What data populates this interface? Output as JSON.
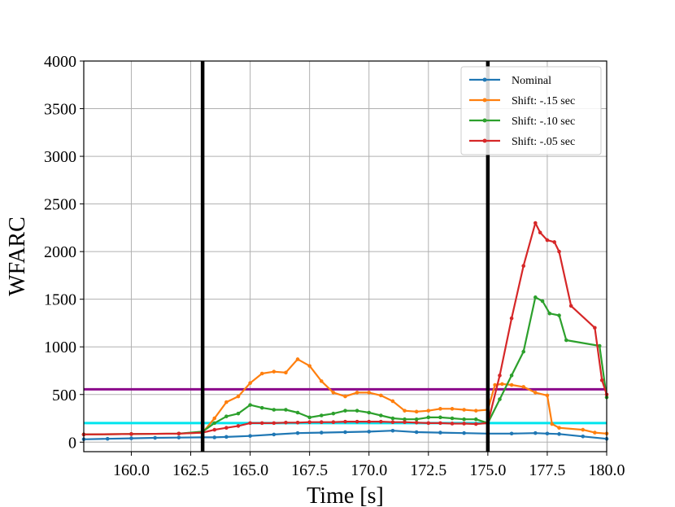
{
  "chart_data": {
    "type": "line",
    "xlabel": "Time [s]",
    "ylabel": "WFARC",
    "xlim": [
      158,
      180
    ],
    "ylim": [
      -100,
      4000
    ],
    "xticks": [
      160.0,
      162.5,
      165.0,
      167.5,
      170.0,
      172.5,
      175.0,
      177.5,
      180.0
    ],
    "xtick_labels": [
      "160.0",
      "162.5",
      "165.0",
      "167.5",
      "170.0",
      "172.5",
      "175.0",
      "177.5",
      "180.0"
    ],
    "yticks": [
      0,
      500,
      1000,
      1500,
      2000,
      2500,
      3000,
      3500,
      4000
    ],
    "ytick_labels": [
      "0",
      "500",
      "1000",
      "1500",
      "2000",
      "2500",
      "3000",
      "3500",
      "4000"
    ],
    "grid": true,
    "legend_position": "top-right",
    "vertical_lines": [
      {
        "x": 163.0,
        "color": "#000000"
      },
      {
        "x": 175.0,
        "color": "#000000"
      }
    ],
    "horizontal_lines": [
      {
        "y": 200,
        "color": "#00e5ee"
      },
      {
        "y": 555,
        "color": "#8b0a8b"
      }
    ],
    "series": [
      {
        "name": "Nominal",
        "color": "#1f77b4",
        "x": [
          158.0,
          159.0,
          160.0,
          161.0,
          162.0,
          163.0,
          163.5,
          164.0,
          165.0,
          166.0,
          167.0,
          168.0,
          169.0,
          170.0,
          171.0,
          172.0,
          173.0,
          174.0,
          175.0,
          176.0,
          177.0,
          177.5,
          178.0,
          179.0,
          180.0
        ],
        "y": [
          30,
          35,
          40,
          45,
          48,
          50,
          50,
          55,
          65,
          80,
          95,
          100,
          105,
          110,
          120,
          105,
          100,
          95,
          90,
          90,
          95,
          90,
          85,
          60,
          35
        ]
      },
      {
        "name": "Shift: -.15 sec",
        "color": "#ff7f0e",
        "x": [
          158.0,
          160.0,
          162.0,
          163.0,
          163.5,
          164.0,
          164.5,
          165.0,
          165.5,
          166.0,
          166.5,
          167.0,
          167.5,
          168.0,
          168.5,
          169.0,
          169.5,
          170.0,
          170.5,
          171.0,
          171.5,
          172.0,
          172.5,
          173.0,
          173.5,
          174.0,
          174.5,
          175.0,
          175.3,
          175.6,
          176.0,
          176.5,
          177.0,
          177.5,
          177.7,
          178.0,
          179.0,
          179.5,
          180.0
        ],
        "y": [
          80,
          85,
          90,
          100,
          250,
          420,
          480,
          620,
          720,
          740,
          730,
          870,
          800,
          640,
          520,
          480,
          520,
          520,
          490,
          430,
          330,
          320,
          330,
          350,
          350,
          340,
          330,
          340,
          600,
          610,
          600,
          580,
          520,
          490,
          190,
          150,
          130,
          100,
          90
        ]
      },
      {
        "name": "Shift: -.10 sec",
        "color": "#2ca02c",
        "x": [
          158.0,
          160.0,
          162.0,
          163.0,
          163.5,
          164.0,
          164.5,
          165.0,
          165.5,
          166.0,
          166.5,
          167.0,
          167.5,
          168.0,
          168.5,
          169.0,
          169.5,
          170.0,
          170.5,
          171.0,
          171.5,
          172.0,
          172.5,
          173.0,
          173.5,
          174.0,
          174.5,
          175.0,
          175.5,
          176.0,
          176.5,
          177.0,
          177.3,
          177.6,
          178.0,
          178.3,
          179.7,
          180.0
        ],
        "y": [
          80,
          85,
          90,
          110,
          200,
          270,
          300,
          390,
          360,
          340,
          340,
          310,
          260,
          280,
          300,
          330,
          330,
          310,
          280,
          250,
          240,
          240,
          260,
          260,
          250,
          240,
          240,
          200,
          450,
          700,
          950,
          1520,
          1480,
          1350,
          1330,
          1070,
          1010,
          470
        ]
      },
      {
        "name": "Shift: -.05 sec",
        "color": "#d62728",
        "x": [
          158.0,
          160.0,
          162.0,
          163.0,
          163.5,
          164.0,
          164.5,
          165.0,
          165.5,
          166.0,
          166.5,
          167.0,
          167.5,
          168.0,
          168.5,
          169.0,
          169.5,
          170.0,
          170.5,
          171.0,
          171.5,
          172.0,
          172.5,
          173.0,
          173.5,
          174.0,
          174.5,
          175.0,
          175.5,
          176.0,
          176.5,
          177.0,
          177.2,
          177.5,
          177.8,
          178.0,
          178.5,
          179.5,
          179.8,
          180.0
        ],
        "y": [
          80,
          85,
          90,
          100,
          130,
          150,
          170,
          200,
          200,
          200,
          205,
          205,
          210,
          210,
          210,
          215,
          215,
          215,
          215,
          210,
          210,
          205,
          200,
          200,
          195,
          195,
          190,
          200,
          700,
          1300,
          1850,
          2300,
          2200,
          2120,
          2100,
          2000,
          1430,
          1200,
          650,
          500
        ]
      }
    ]
  }
}
